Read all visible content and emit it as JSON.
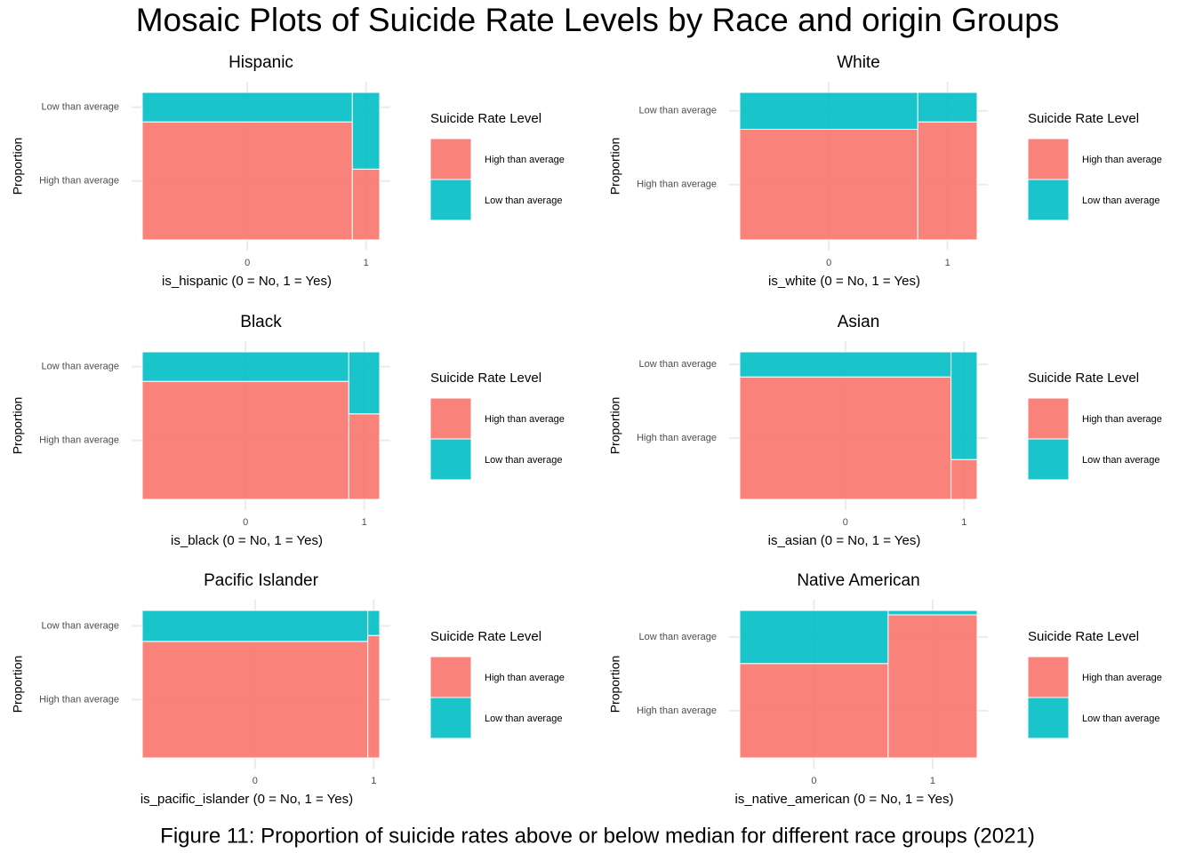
{
  "title": "Mosaic Plots of Suicide Rate Levels by Race and origin Groups",
  "caption": "Figure 11: Proportion of suicide rates above or below median for different race groups (2021)",
  "chart_data": [
    {
      "type": "mosaic",
      "title": "Hispanic",
      "x_label": "is_hispanic (0 = No, 1 = Yes)",
      "y_label": "Proportion",
      "categories": [
        "0",
        "1"
      ],
      "widths": [
        0.885,
        0.115
      ],
      "legend_title": "Suicide Rate Level",
      "grid": true,
      "series": [
        {
          "name": "High than average",
          "color": "#F8766D",
          "values": [
            0.8,
            0.48
          ]
        },
        {
          "name": "Low than average",
          "color": "#00BFC4",
          "values": [
            0.2,
            0.52
          ]
        }
      ]
    },
    {
      "type": "mosaic",
      "title": "White",
      "x_label": "is_white (0 = No, 1 = Yes)",
      "y_label": "Proportion",
      "categories": [
        "0",
        "1"
      ],
      "widths": [
        0.75,
        0.25
      ],
      "legend_title": "Suicide Rate Level",
      "grid": true,
      "series": [
        {
          "name": "High than average",
          "color": "#F8766D",
          "values": [
            0.75,
            0.8
          ]
        },
        {
          "name": "Low than average",
          "color": "#00BFC4",
          "values": [
            0.25,
            0.2
          ]
        }
      ]
    },
    {
      "type": "mosaic",
      "title": "Black",
      "x_label": "is_black (0 = No, 1 = Yes)",
      "y_label": "Proportion",
      "categories": [
        "0",
        "1"
      ],
      "widths": [
        0.87,
        0.13
      ],
      "legend_title": "Suicide Rate Level",
      "grid": true,
      "series": [
        {
          "name": "High than average",
          "color": "#F8766D",
          "values": [
            0.8,
            0.58
          ]
        },
        {
          "name": "Low than average",
          "color": "#00BFC4",
          "values": [
            0.2,
            0.42
          ]
        }
      ]
    },
    {
      "type": "mosaic",
      "title": "Asian",
      "x_label": "is_asian (0 = No, 1 = Yes)",
      "y_label": "Proportion",
      "categories": [
        "0",
        "1"
      ],
      "widths": [
        0.89,
        0.11
      ],
      "legend_title": "Suicide Rate Level",
      "grid": true,
      "series": [
        {
          "name": "High than average",
          "color": "#F8766D",
          "values": [
            0.83,
            0.27
          ]
        },
        {
          "name": "Low than average",
          "color": "#00BFC4",
          "values": [
            0.17,
            0.73
          ]
        }
      ]
    },
    {
      "type": "mosaic",
      "title": "Pacific Islander",
      "x_label": "is_pacific_islander (0 = No, 1 = Yes)",
      "y_label": "Proportion",
      "categories": [
        "0",
        "1"
      ],
      "widths": [
        0.95,
        0.05
      ],
      "legend_title": "Suicide Rate Level",
      "grid": true,
      "series": [
        {
          "name": "High than average",
          "color": "#F8766D",
          "values": [
            0.79,
            0.83
          ]
        },
        {
          "name": "Low than average",
          "color": "#00BFC4",
          "values": [
            0.21,
            0.17
          ]
        }
      ]
    },
    {
      "type": "mosaic",
      "title": "Native American",
      "x_label": "is_native_american (0 = No, 1 = Yes)",
      "y_label": "Proportion",
      "categories": [
        "0",
        "1"
      ],
      "widths": [
        0.625,
        0.375
      ],
      "legend_title": "Suicide Rate Level",
      "grid": true,
      "series": [
        {
          "name": "High than average",
          "color": "#F8766D",
          "values": [
            0.64,
            0.97
          ]
        },
        {
          "name": "Low than average",
          "color": "#00BFC4",
          "values": [
            0.36,
            0.03
          ]
        }
      ]
    }
  ]
}
